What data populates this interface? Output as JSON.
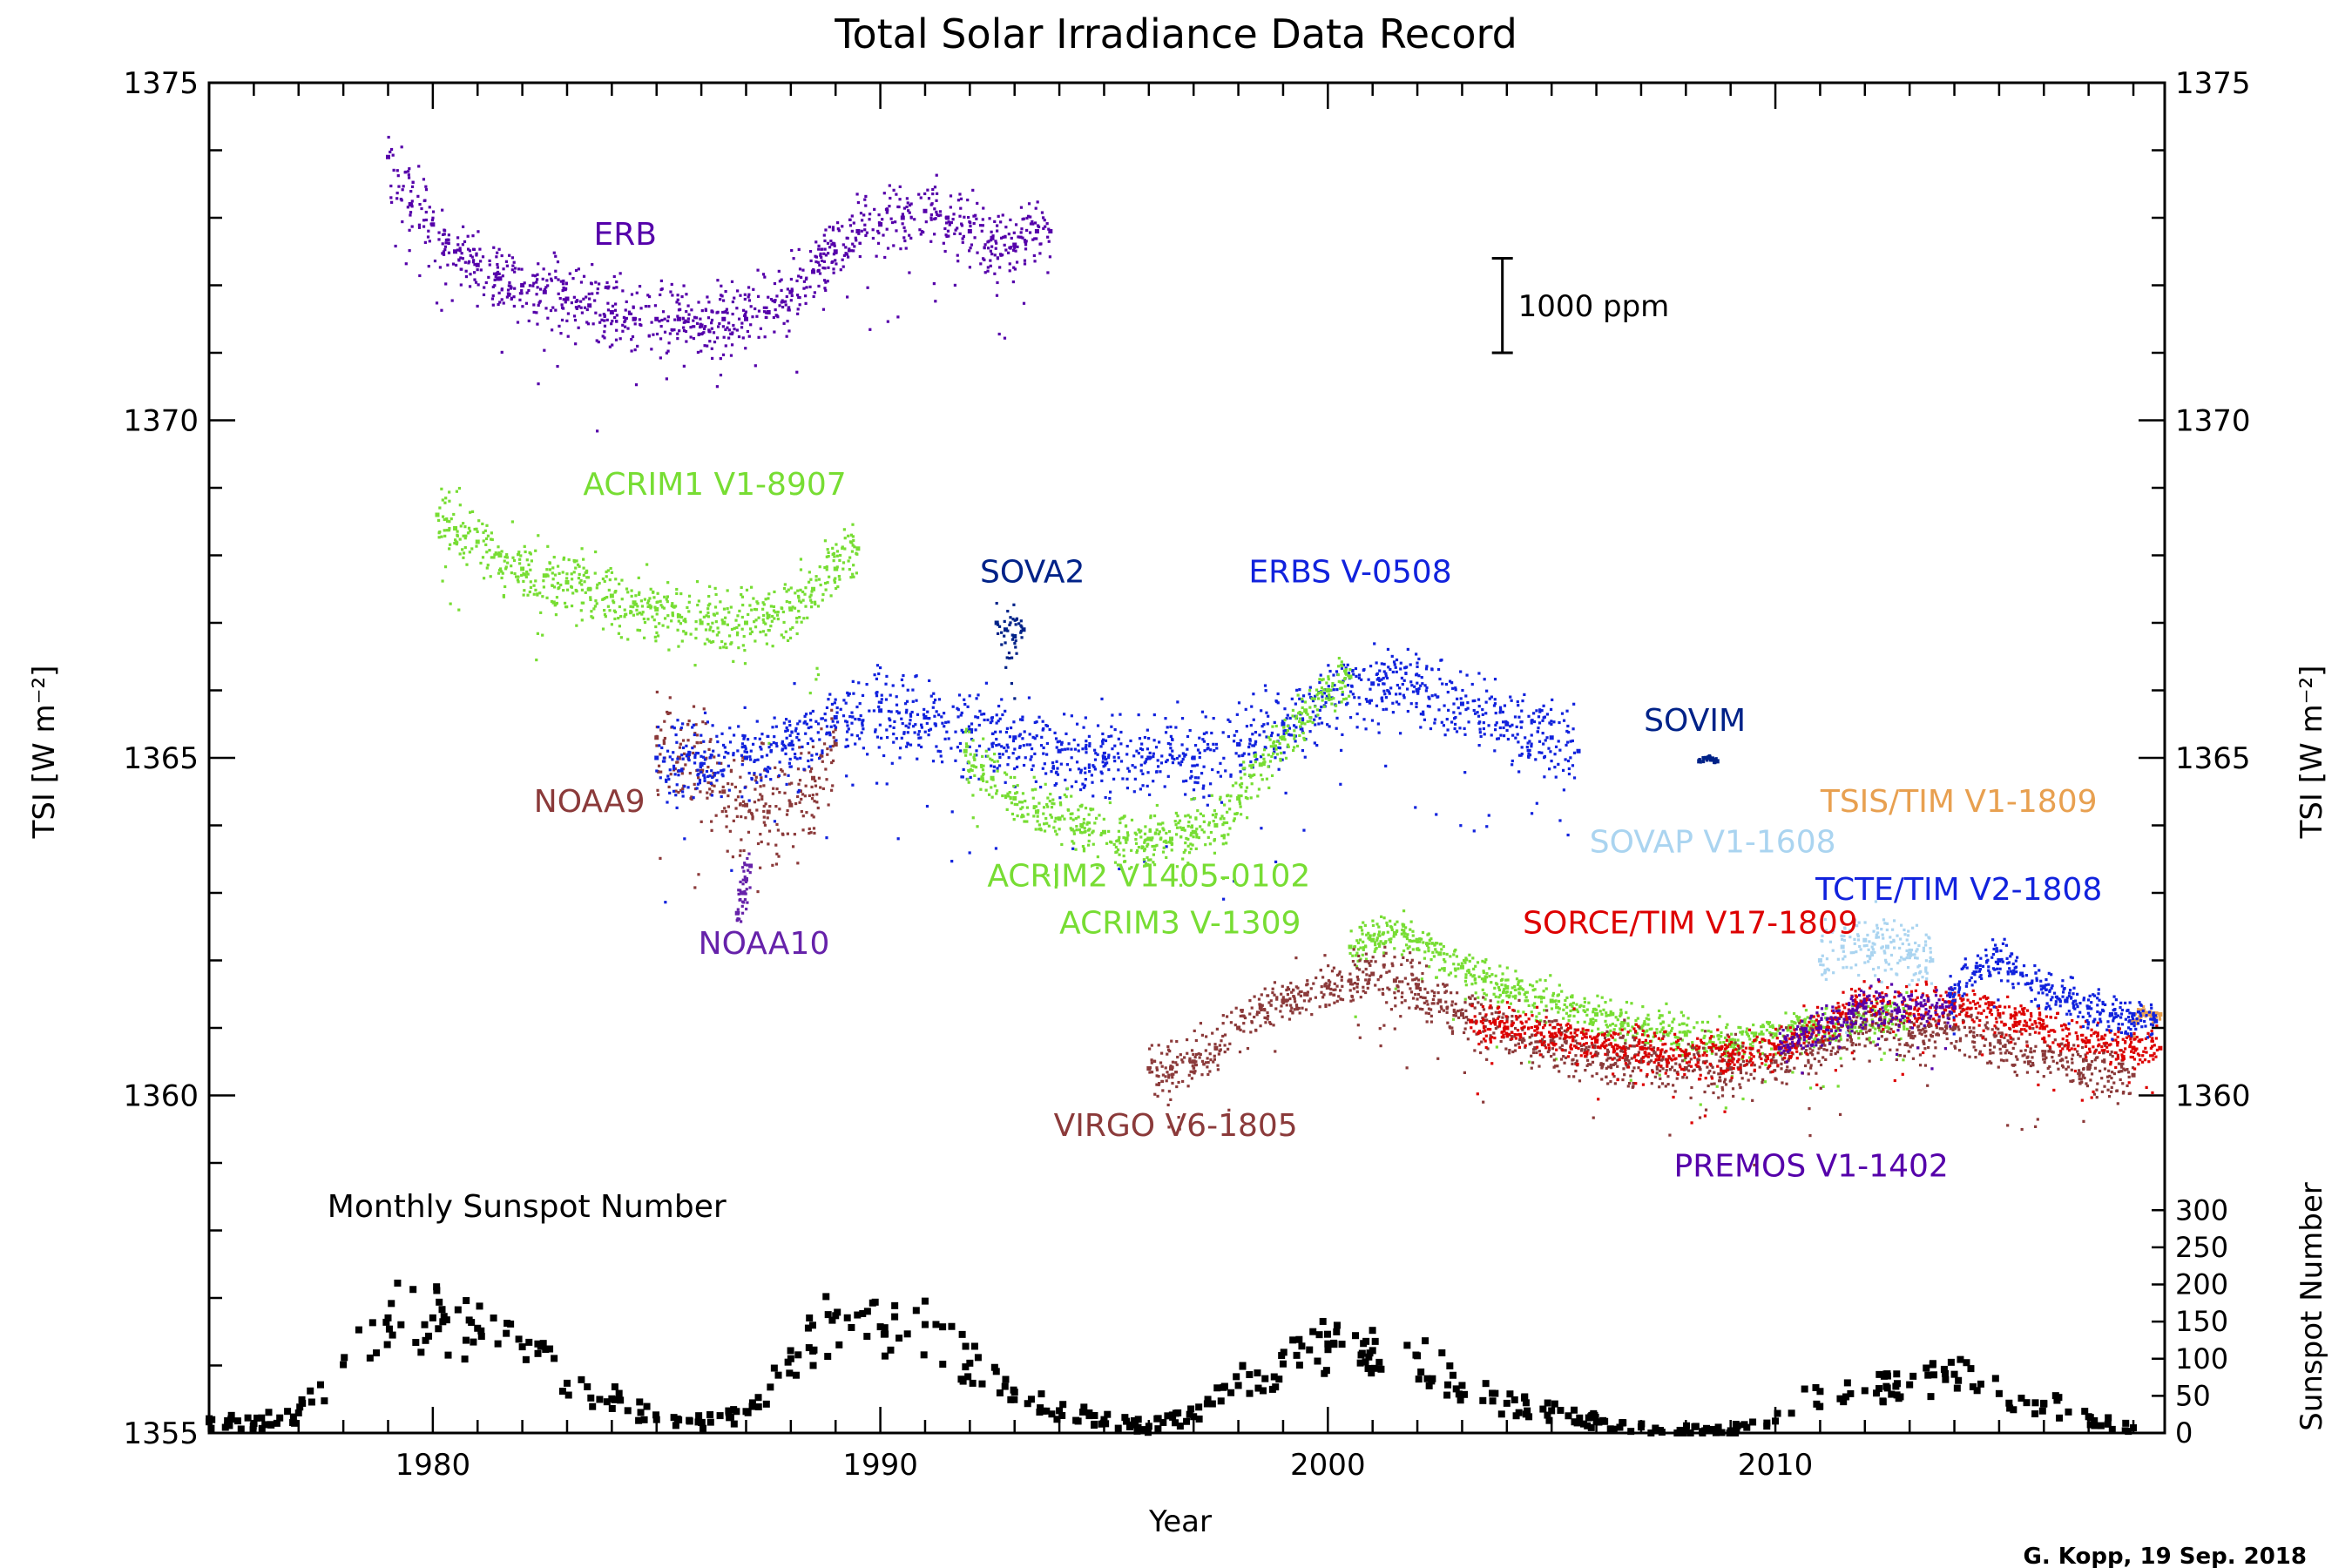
{
  "chart_data": {
    "type": "scatter",
    "title": "Total Solar Irradiance Data Record",
    "xlabel": "Year",
    "ylabel_left": "TSI [W m⁻²]",
    "ylabel_right_top": "TSI [W m⁻²]",
    "ylabel_right_bottom": "Sunspot Number",
    "xlim": [
      1975.0,
      2018.7
    ],
    "ylim": [
      1355,
      1375
    ],
    "x_ticks": [
      1980,
      1990,
      2000,
      2010
    ],
    "y_ticks_left": [
      1355,
      1360,
      1365,
      1370,
      1375
    ],
    "y_ticks_right": [
      1360,
      1365,
      1370,
      1375
    ],
    "sunspot_ticks": [
      0,
      50,
      100,
      150,
      200,
      250,
      300
    ],
    "sunspot_axis_range": [
      0,
      300
    ],
    "sunspot_tsi_range": [
      1355,
      1358.3
    ],
    "scale_bar": {
      "label": "1000 ppm",
      "x": 2003.9,
      "y_bottom": 1371.0,
      "y_top": 1372.4
    },
    "credit": "G. Kopp, 19 Sep. 2018",
    "series": [
      {
        "name": "ERB",
        "color": "#5500aa",
        "label_x": 1984.3,
        "label_y": 1372.6,
        "x": [
          1979.0,
          1979.5,
          1980.0,
          1980.5,
          1981.0,
          1981.5,
          1982.0,
          1982.5,
          1983.0,
          1983.5,
          1984.0,
          1984.5,
          1985.0,
          1985.5,
          1986.0,
          1986.5,
          1987.0,
          1987.5,
          1988.0,
          1988.5,
          1989.0,
          1989.5,
          1990.0,
          1990.5,
          1991.0,
          1991.5,
          1992.0,
          1992.5,
          1993.0,
          1993.5,
          1993.8
        ],
        "y": [
          1373.9,
          1373.2,
          1372.9,
          1372.5,
          1372.3,
          1372.1,
          1372.0,
          1371.9,
          1371.8,
          1371.7,
          1371.6,
          1371.5,
          1371.5,
          1371.5,
          1371.4,
          1371.5,
          1371.5,
          1371.6,
          1371.9,
          1372.2,
          1372.5,
          1372.8,
          1372.9,
          1373.0,
          1373.1,
          1373.0,
          1372.8,
          1372.7,
          1372.6,
          1372.8,
          1372.8
        ],
        "spread": 0.5
      },
      {
        "name": "ACRIM1 V1-8907",
        "color": "#77dd33",
        "label_x": 1986.3,
        "label_y": 1368.9,
        "x": [
          1980.1,
          1980.5,
          1981.0,
          1981.5,
          1982.0,
          1982.5,
          1983.0,
          1983.5,
          1984.0,
          1984.5,
          1985.0,
          1985.5,
          1986.0,
          1986.5,
          1987.0,
          1987.5,
          1988.0,
          1988.5,
          1989.0,
          1989.5
        ],
        "y": [
          1368.6,
          1368.4,
          1368.2,
          1368.0,
          1367.8,
          1367.7,
          1367.6,
          1367.5,
          1367.4,
          1367.3,
          1367.2,
          1367.1,
          1367.0,
          1367.0,
          1367.0,
          1367.1,
          1367.2,
          1367.5,
          1367.8,
          1368.1
        ],
        "spread": 0.5
      },
      {
        "name": "NOAA9",
        "color": "#8b3a3a",
        "label_x": 1983.5,
        "label_y": 1364.2,
        "x": [
          1985.0,
          1985.5,
          1986.0,
          1986.5,
          1987.0,
          1987.5,
          1988.0,
          1988.5,
          1989.0
        ],
        "y": [
          1365.3,
          1365.0,
          1364.8,
          1364.5,
          1364.3,
          1364.2,
          1364.3,
          1364.7,
          1365.2
        ],
        "spread": 0.8
      },
      {
        "name": "NOAA10",
        "color": "#6622aa",
        "label_x": 1987.4,
        "label_y": 1362.1,
        "x": [
          1986.8,
          1986.9,
          1987.0,
          1987.1
        ],
        "y": [
          1362.7,
          1363.0,
          1363.2,
          1363.4
        ],
        "spread": 0.4
      },
      {
        "name": "SOVA2",
        "color": "#002288",
        "label_x": 1993.4,
        "label_y": 1367.6,
        "x": [
          1992.6,
          1992.8,
          1993.0,
          1993.2
        ],
        "y": [
          1367.0,
          1366.9,
          1366.8,
          1366.9
        ],
        "spread": 0.4
      },
      {
        "name": "ERBS V-0508",
        "color": "#1122dd",
        "label_x": 2000.5,
        "label_y": 1367.6,
        "x": [
          1985.0,
          1986.0,
          1987.0,
          1988.0,
          1989.0,
          1990.0,
          1991.0,
          1992.0,
          1993.0,
          1994.0,
          1995.0,
          1996.0,
          1997.0,
          1998.0,
          1999.0,
          2000.0,
          2001.0,
          2002.0,
          2003.0,
          2004.0,
          2005.0,
          2005.6
        ],
        "y": [
          1365.0,
          1364.9,
          1365.0,
          1365.2,
          1365.6,
          1365.7,
          1365.6,
          1365.4,
          1365.3,
          1365.1,
          1365.0,
          1365.0,
          1365.0,
          1365.2,
          1365.5,
          1365.9,
          1366.1,
          1366.0,
          1365.8,
          1365.5,
          1365.3,
          1365.1
        ],
        "spread": 0.6
      },
      {
        "name": "SOVIM",
        "color": "#002288",
        "label_x": 2008.2,
        "label_y": 1365.4,
        "x": [
          2008.3,
          2008.5,
          2008.7
        ],
        "y": [
          1364.95,
          1365.0,
          1364.95
        ],
        "spread": 0.05
      },
      {
        "name": "ACRIM2 V1405-0102",
        "color": "#77dd33",
        "label_x": 1996.0,
        "label_y": 1363.1,
        "x": [
          1991.9,
          1992.5,
          1993.0,
          1993.5,
          1994.0,
          1994.5,
          1995.0,
          1995.5,
          1996.0,
          1996.5,
          1997.0,
          1997.5,
          1998.0,
          1998.5,
          1999.0,
          1999.5,
          2000.0,
          2000.5
        ],
        "y": [
          1365.1,
          1364.7,
          1364.4,
          1364.2,
          1364.1,
          1364.0,
          1363.9,
          1363.8,
          1363.8,
          1363.8,
          1363.9,
          1364.0,
          1364.4,
          1364.9,
          1365.3,
          1365.7,
          1366.0,
          1366.2
        ],
        "spread": 0.4
      },
      {
        "name": "ACRIM3 V-1309",
        "color": "#77dd33",
        "label_x": 1996.7,
        "label_y": 1362.4,
        "x": [
          2000.5,
          2001.0,
          2001.5,
          2002.0,
          2002.5,
          2003.0,
          2003.5,
          2004.0,
          2005.0,
          2006.0,
          2007.0,
          2008.0,
          2009.0,
          2010.0,
          2011.0,
          2012.0,
          2013.0
        ],
        "y": [
          1362.2,
          1362.3,
          1362.4,
          1362.3,
          1362.1,
          1361.9,
          1361.7,
          1361.6,
          1361.4,
          1361.2,
          1361.0,
          1360.9,
          1360.8,
          1360.9,
          1361.0,
          1361.1,
          1361.2
        ],
        "spread": 0.3
      },
      {
        "name": "VIRGO V6-1805",
        "color": "#8b3a3a",
        "label_x": 1996.6,
        "label_y": 1359.4,
        "x": [
          1996.0,
          1996.5,
          1997.0,
          1997.5,
          1998.0,
          1998.5,
          1999.0,
          1999.5,
          2000.0,
          2000.5,
          2001.0,
          2001.5,
          2002.0,
          2002.5,
          2003.0,
          2004.0,
          2005.0,
          2006.0,
          2007.0,
          2008.0,
          2009.0,
          2010.0,
          2011.0,
          2012.0,
          2013.0,
          2014.0,
          2015.0,
          2016.0,
          2017.0,
          2018.0
        ],
        "y": [
          1360.4,
          1360.4,
          1360.5,
          1360.7,
          1361.0,
          1361.3,
          1361.4,
          1361.5,
          1361.6,
          1361.7,
          1361.8,
          1361.7,
          1361.6,
          1361.4,
          1361.2,
          1361.0,
          1360.8,
          1360.6,
          1360.5,
          1360.4,
          1360.4,
          1360.5,
          1360.8,
          1361.0,
          1360.9,
          1361.0,
          1360.8,
          1360.6,
          1360.4,
          1360.3
        ],
        "spread": 0.4
      },
      {
        "name": "SORCE/TIM V17-1809",
        "color": "#dd0000",
        "label_x": 2008.1,
        "label_y": 1362.4,
        "x": [
          2003.2,
          2004.0,
          2005.0,
          2006.0,
          2007.0,
          2008.0,
          2009.0,
          2010.0,
          2011.0,
          2012.0,
          2013.0,
          2014.0,
          2015.0,
          2016.0,
          2017.0,
          2018.0,
          2018.6
        ],
        "y": [
          1361.1,
          1361.0,
          1360.9,
          1360.8,
          1360.7,
          1360.6,
          1360.6,
          1360.7,
          1361.0,
          1361.4,
          1361.3,
          1361.4,
          1361.2,
          1361.0,
          1360.8,
          1360.7,
          1360.7
        ],
        "spread": 0.3
      },
      {
        "name": "SOVAP V1-1608",
        "color": "#aad4f0",
        "label_x": 2008.6,
        "label_y": 1363.6,
        "x": [
          2011.0,
          2011.5,
          2012.0,
          2012.5,
          2013.0,
          2013.5
        ],
        "y": [
          1362.0,
          1362.2,
          1362.3,
          1362.2,
          1362.1,
          1362.0
        ],
        "spread": 0.5
      },
      {
        "name": "TSIS/TIM V1-1809",
        "color": "#e8a050",
        "label_x": 2014.1,
        "label_y": 1364.2,
        "x": [
          2018.0,
          2018.2,
          2018.4,
          2018.6
        ],
        "y": [
          1361.1,
          1361.2,
          1361.2,
          1361.2
        ],
        "spread": 0.1
      },
      {
        "name": "TCTE/TIM V2-1808",
        "color": "#1122dd",
        "label_x": 2014.1,
        "label_y": 1362.9,
        "x": [
          2013.9,
          2014.5,
          2015.0,
          2015.5,
          2016.0,
          2016.5,
          2017.0,
          2017.5,
          2018.0,
          2018.5
        ],
        "y": [
          1361.5,
          1361.9,
          1362.0,
          1361.8,
          1361.6,
          1361.4,
          1361.3,
          1361.2,
          1361.2,
          1361.1
        ],
        "spread": 0.3
      },
      {
        "name": "PREMOS V1-1402",
        "color": "#5500aa",
        "label_x": 2010.8,
        "label_y": 1358.8,
        "x": [
          2010.1,
          2011.0,
          2012.0,
          2013.0,
          2014.0
        ],
        "y": [
          1360.7,
          1361.0,
          1361.3,
          1361.3,
          1361.3
        ],
        "spread": 0.3
      }
    ],
    "sunspot": {
      "name": "Monthly Sunspot Number",
      "color": "#000000",
      "label_x": 1982.1,
      "label_y": 1358.2,
      "x": [
        1975.0,
        1976.0,
        1977.0,
        1978.0,
        1979.0,
        1980.0,
        1981.0,
        1982.0,
        1983.0,
        1984.0,
        1985.0,
        1986.0,
        1987.0,
        1988.0,
        1989.0,
        1990.0,
        1991.0,
        1992.0,
        1993.0,
        1994.0,
        1995.0,
        1996.0,
        1997.0,
        1998.0,
        1999.0,
        2000.0,
        2001.0,
        2002.0,
        2003.0,
        2004.0,
        2005.0,
        2006.0,
        2007.0,
        2008.0,
        2009.0,
        2010.0,
        2011.0,
        2012.0,
        2013.0,
        2014.0,
        2015.0,
        2016.0,
        2017.0,
        2018.0
      ],
      "y": [
        15,
        13,
        27,
        92,
        155,
        155,
        141,
        116,
        67,
        46,
        18,
        14,
        29,
        100,
        158,
        143,
        146,
        94,
        55,
        30,
        18,
        9,
        22,
        64,
        93,
        120,
        111,
        104,
        64,
        40,
        30,
        15,
        8,
        3,
        3,
        16,
        56,
        57,
        65,
        79,
        53,
        40,
        22,
        7
      ]
    }
  }
}
